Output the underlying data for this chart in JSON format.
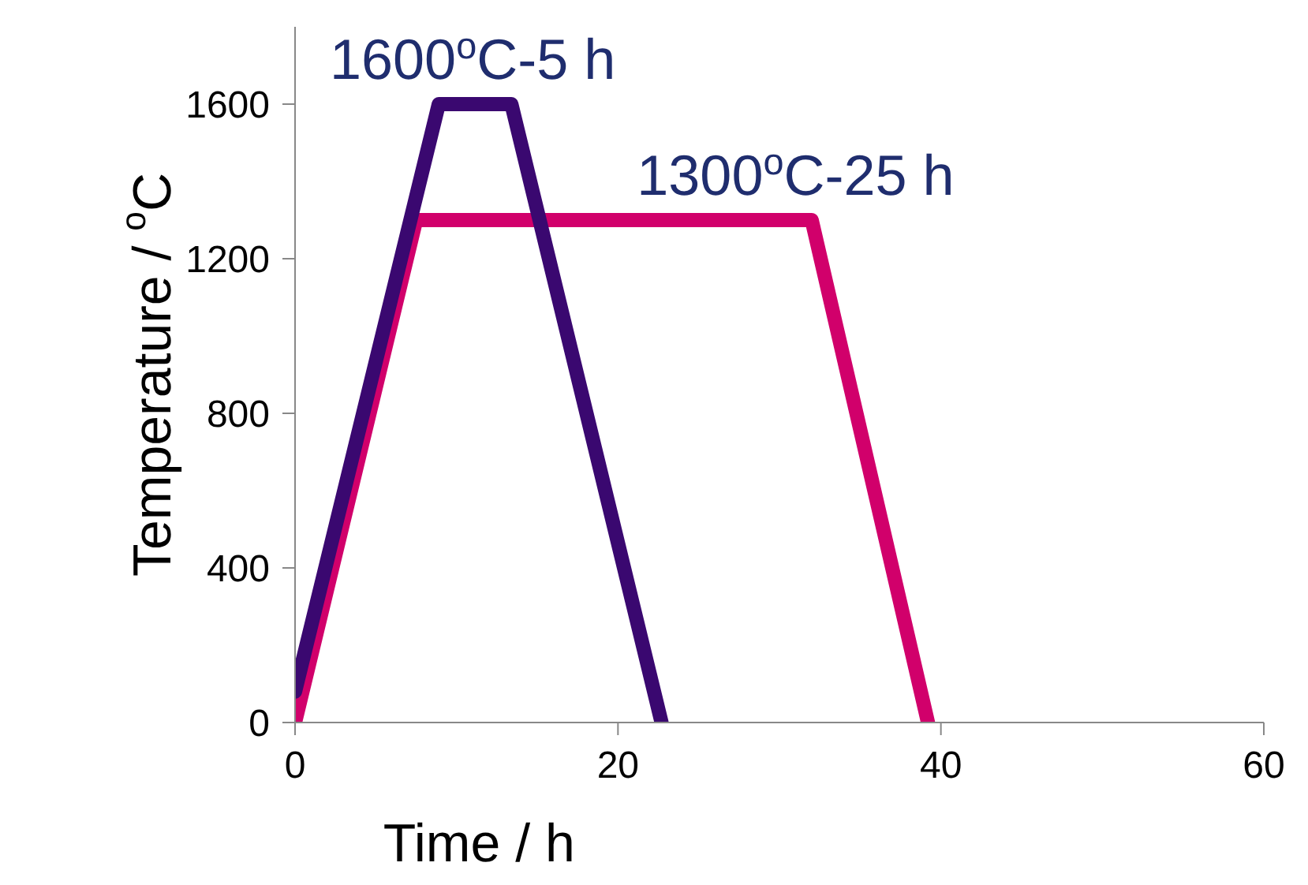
{
  "chart_data": {
    "type": "line",
    "xlabel": "Time / h",
    "ylabel": "Temperature / $^{o}$C",
    "xlim": [
      0,
      60
    ],
    "xticks": [
      0,
      20,
      40,
      60
    ],
    "ylim": [
      0,
      1800
    ],
    "yticks": [
      0,
      400,
      800,
      1200,
      1600
    ],
    "grid": false,
    "legend": false,
    "marker": "none",
    "line_style": "solid",
    "series": [
      {
        "color": "#d1006b",
        "x": [
          0,
          7.5,
          32,
          39.2
        ],
        "values": [
          0,
          1300,
          1300,
          0
        ]
      },
      {
        "color": "#3a0870",
        "x": [
          0,
          8.9,
          13.4,
          22.7
        ],
        "values": [
          80,
          1600,
          1600,
          0
        ]
      }
    ],
    "annotations": [
      {
        "text": "1600$^{o}$C-5 h",
        "x": 11,
        "y": 1600
      },
      {
        "text": "1300$^{o}$C-25 h",
        "x": 31,
        "y": 1300
      }
    ]
  }
}
